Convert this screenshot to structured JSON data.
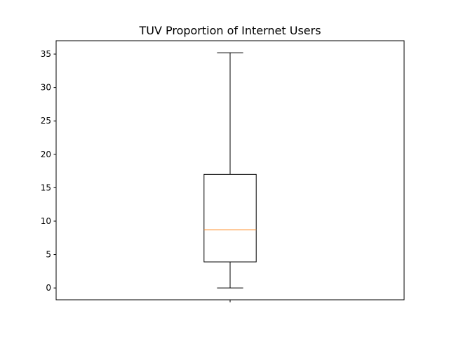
{
  "chart_data": {
    "type": "boxplot",
    "title": "TUV Proportion of Internet Users",
    "xlabel": "",
    "ylabel": "",
    "ylim": [
      -1.77,
      37.0
    ],
    "yticks": [
      0,
      5,
      10,
      15,
      20,
      25,
      30,
      35
    ],
    "xticks": [
      ""
    ],
    "grid": false,
    "boxes": [
      {
        "whisker_low": 0.0,
        "q1": 3.9,
        "median": 8.7,
        "q3": 17.0,
        "whisker_high": 35.2
      }
    ],
    "colors": {
      "box": "#000000",
      "median": "#ff7f0e",
      "axes": "#000000"
    }
  }
}
